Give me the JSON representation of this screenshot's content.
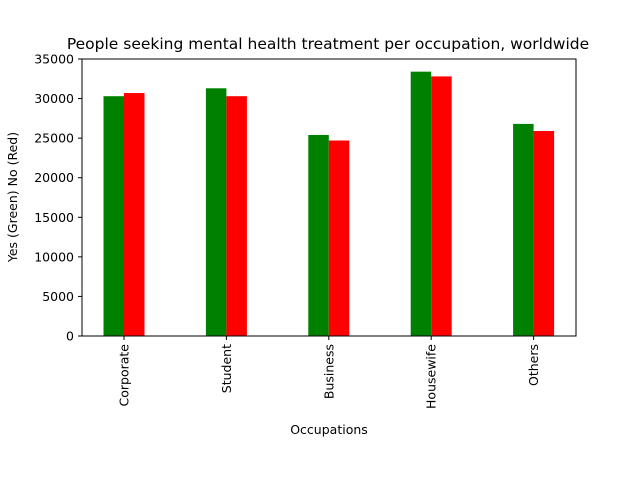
{
  "chart_data": {
    "type": "bar",
    "title": "People seeking mental health treatment per occupation, worldwide",
    "xlabel": "Occupations",
    "ylabel": "Yes (Green) No (Red)",
    "categories": [
      "Corporate",
      "Student",
      "Business",
      "Housewife",
      "Others"
    ],
    "series": [
      {
        "values": [
          30300,
          31300,
          25400,
          33400,
          26800
        ],
        "color": "#008000"
      },
      {
        "values": [
          30700,
          30300,
          24700,
          32800,
          25900
        ],
        "color": "#ff0000"
      }
    ],
    "ylim": [
      0,
      35000
    ],
    "yticks": [
      0,
      5000,
      10000,
      15000,
      20000,
      25000,
      30000,
      35000
    ],
    "grid": false,
    "legend": "none"
  }
}
